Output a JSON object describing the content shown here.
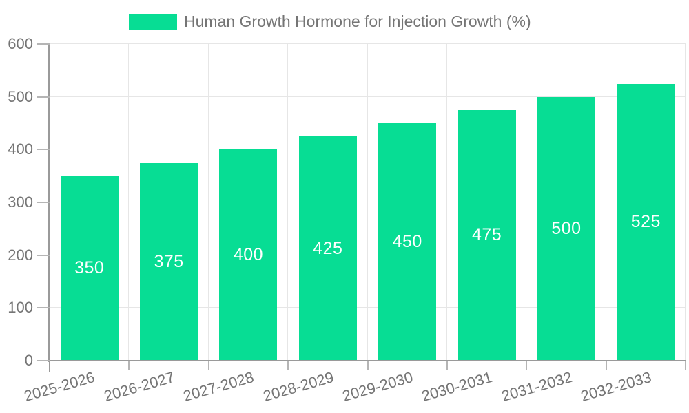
{
  "chart_data": {
    "type": "bar",
    "title": "Human Growth Hormone for Injection Growth (%)",
    "categories": [
      "2025-2026",
      "2026-2027",
      "2027-2028",
      "2028-2029",
      "2029-2030",
      "2030-2031",
      "2031-2032",
      "2032-2033"
    ],
    "values": [
      350,
      375,
      400,
      425,
      450,
      475,
      500,
      525
    ],
    "ylim": [
      0,
      600
    ],
    "yticks": [
      0,
      100,
      200,
      300,
      400,
      500,
      600
    ],
    "xlabel": "",
    "ylabel": "",
    "grid": true,
    "legend_position": "top",
    "value_label_position": "inside-center"
  },
  "colors": {
    "bar": "#07dd94",
    "grid": "#e6e6e6",
    "axis": "#9a9a9a",
    "tick": "#b5b5b5",
    "text": "#757575",
    "value_label": "#ffffff",
    "background": "#ffffff"
  }
}
